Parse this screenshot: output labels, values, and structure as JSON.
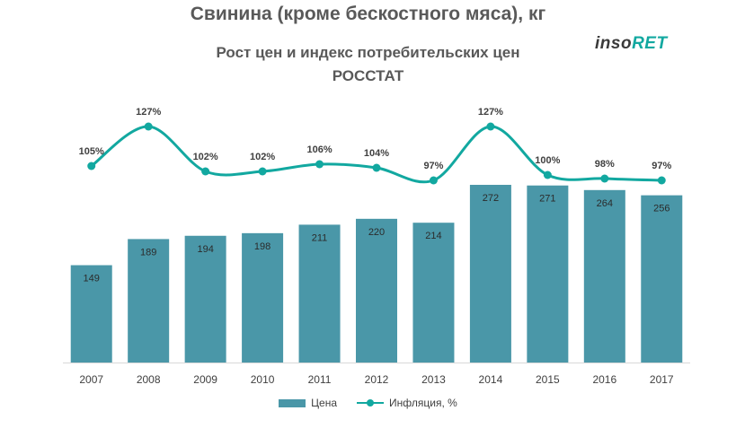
{
  "header": {
    "title": "Свинина (кроме бескостного мяса), кг",
    "subtitle_line1": "Рост цен и индекс потребительских цен",
    "subtitle_line2": "РОССТАТ",
    "logo_part1": "inso",
    "logo_part2": "RET"
  },
  "colors": {
    "bar": "#4a97a8",
    "line": "#12a8a0",
    "axis": "#d9d9d9",
    "text": "#595959"
  },
  "chart_data": {
    "type": "bar",
    "categories": [
      "2007",
      "2008",
      "2009",
      "2010",
      "2011",
      "2012",
      "2013",
      "2014",
      "2015",
      "2016",
      "2017"
    ],
    "series": [
      {
        "name": "Цена",
        "type": "bar",
        "values": [
          149,
          189,
          194,
          198,
          211,
          220,
          214,
          272,
          271,
          264,
          256
        ]
      },
      {
        "name": "Инфляция, %",
        "type": "line",
        "values": [
          105,
          127,
          102,
          102,
          106,
          104,
          97,
          127,
          100,
          98,
          97
        ],
        "labels": [
          "105%",
          "127%",
          "102%",
          "102%",
          "106%",
          "104%",
          "97%",
          "127%",
          "100%",
          "98%",
          "97%"
        ]
      }
    ],
    "title": "Свинина (кроме бескостного мяса), кг",
    "subtitle": "Рост цен и индекс потребительских цен РОССТАТ",
    "xlabel": "",
    "ylabel": "",
    "bar_ylim": [
      0,
      300
    ],
    "line_ylim": [
      90,
      130
    ],
    "grid": false,
    "legend_position": "bottom"
  }
}
